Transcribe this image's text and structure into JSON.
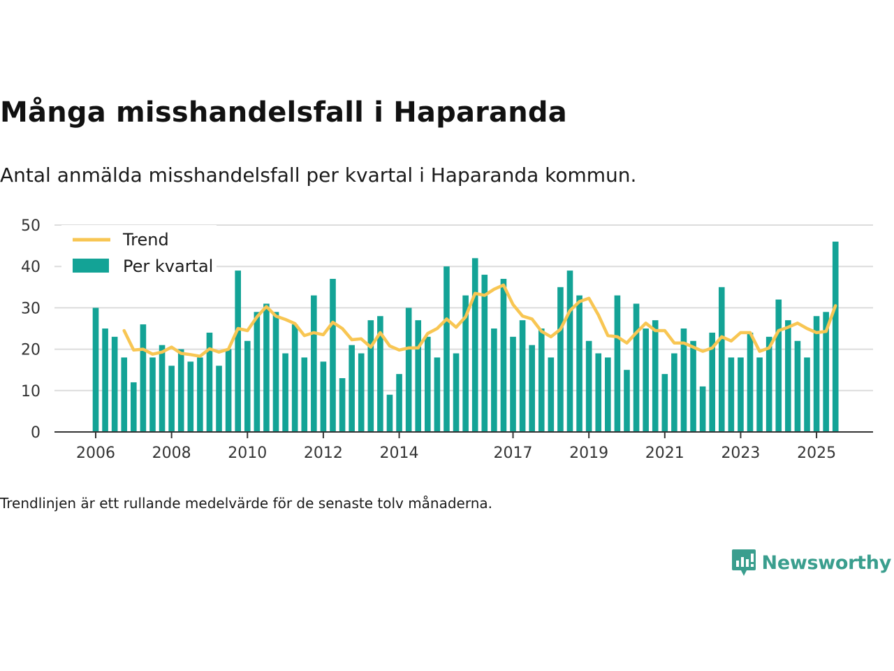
{
  "header": {
    "title": "Många misshandelsfall i Haparanda",
    "subtitle": "Antal anmälda misshandelsfall per kvartal i Haparanda kommun."
  },
  "footer": {
    "note": "Trendlinjen är ett rullande medelvärde för de senaste tolv månaderna.",
    "brand": "Newsworthy"
  },
  "colors": {
    "bar": "#13a396",
    "trend": "#f8c653",
    "grid": "#dcdcdc",
    "axis": "#333333",
    "brand": "#3a9e8e"
  },
  "chart_data": {
    "type": "bar",
    "title": "Många misshandelsfall i Haparanda",
    "xlabel": "",
    "ylabel": "",
    "ylim": [
      0,
      50
    ],
    "yticks": [
      0,
      10,
      20,
      30,
      40,
      50
    ],
    "grid": true,
    "legend_position": "top-left",
    "xtick_labels": [
      {
        "label": "2006",
        "index": 0
      },
      {
        "label": "2008",
        "index": 8
      },
      {
        "label": "2010",
        "index": 16
      },
      {
        "label": "2012",
        "index": 24
      },
      {
        "label": "2014",
        "index": 32
      },
      {
        "label": "2017",
        "index": 44
      },
      {
        "label": "2019",
        "index": 52
      },
      {
        "label": "2021",
        "index": 60
      },
      {
        "label": "2023",
        "index": 68
      },
      {
        "label": "2025",
        "index": 76
      }
    ],
    "series": [
      {
        "name": "Per kvartal",
        "kind": "bar",
        "values": [
          30,
          25,
          23,
          18,
          12,
          26,
          18,
          21,
          16,
          20,
          17,
          18,
          24,
          16,
          20,
          39,
          22,
          29,
          31,
          29,
          19,
          26,
          18,
          33,
          17,
          37,
          13,
          21,
          19,
          27,
          28,
          9,
          14,
          30,
          27,
          23,
          18,
          40,
          19,
          33,
          42,
          38,
          25,
          37,
          23,
          27,
          21,
          25,
          18,
          35,
          39,
          33,
          22,
          19,
          18,
          33,
          15,
          31,
          25,
          27,
          14,
          19,
          25,
          22,
          11,
          24,
          35,
          18,
          18,
          24,
          18,
          23,
          32,
          27,
          22,
          18,
          28,
          29,
          46
        ]
      },
      {
        "name": "Trend",
        "kind": "line",
        "start_index": 3,
        "values": [
          24.5,
          19.8,
          20.0,
          18.8,
          19.3,
          20.5,
          19.0,
          18.7,
          18.3,
          20.1,
          19.3,
          20.0,
          25.0,
          24.5,
          27.8,
          30.3,
          28.0,
          27.2,
          26.2,
          23.3,
          24.0,
          23.5,
          26.5,
          25.0,
          22.3,
          22.5,
          20.5,
          24.0,
          20.8,
          19.8,
          20.3,
          20.3,
          23.8,
          25.0,
          27.3,
          25.3,
          27.8,
          33.5,
          33.0,
          34.5,
          35.5,
          30.8,
          28.0,
          27.3,
          24.3,
          23.0,
          24.8,
          29.3,
          31.5,
          32.3,
          28.3,
          23.3,
          23.0,
          21.5,
          24.0,
          26.3,
          24.5,
          24.5,
          21.5,
          21.5,
          20.5,
          19.5,
          20.3,
          23.0,
          22.0,
          24.0,
          24.0,
          19.5,
          20.3,
          24.5,
          25.3,
          26.3,
          25.0,
          24.0,
          24.3,
          30.5
        ]
      }
    ]
  }
}
